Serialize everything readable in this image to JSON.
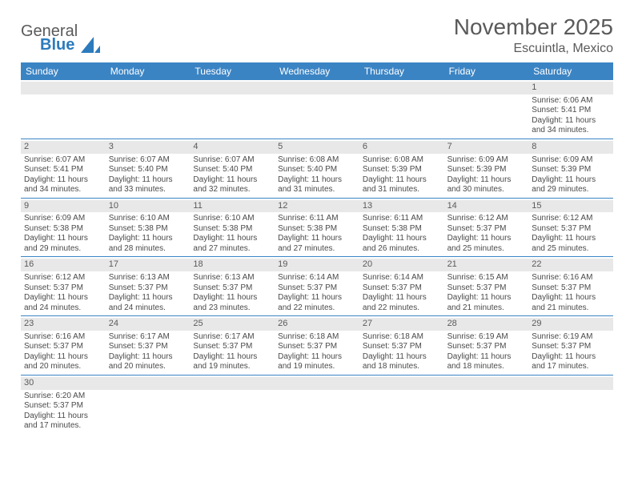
{
  "logo": {
    "text1": "General",
    "text2": "Blue",
    "shape_color": "#2b7bbd",
    "text1_color": "#5a5a5a"
  },
  "title": "November 2025",
  "location": "Escuintla, Mexico",
  "colors": {
    "header_bg": "#3b84c4",
    "header_text": "#ffffff",
    "daynum_bg": "#e8e8e8",
    "row_border": "#3b84c4",
    "text": "#4a4a4a"
  },
  "weekdays": [
    "Sunday",
    "Monday",
    "Tuesday",
    "Wednesday",
    "Thursday",
    "Friday",
    "Saturday"
  ],
  "weeks": [
    [
      {
        "n": "",
        "empty": true
      },
      {
        "n": "",
        "empty": true
      },
      {
        "n": "",
        "empty": true
      },
      {
        "n": "",
        "empty": true
      },
      {
        "n": "",
        "empty": true
      },
      {
        "n": "",
        "empty": true
      },
      {
        "n": "1",
        "sunrise": "Sunrise: 6:06 AM",
        "sunset": "Sunset: 5:41 PM",
        "d1": "Daylight: 11 hours",
        "d2": "and 34 minutes."
      }
    ],
    [
      {
        "n": "2",
        "sunrise": "Sunrise: 6:07 AM",
        "sunset": "Sunset: 5:41 PM",
        "d1": "Daylight: 11 hours",
        "d2": "and 34 minutes."
      },
      {
        "n": "3",
        "sunrise": "Sunrise: 6:07 AM",
        "sunset": "Sunset: 5:40 PM",
        "d1": "Daylight: 11 hours",
        "d2": "and 33 minutes."
      },
      {
        "n": "4",
        "sunrise": "Sunrise: 6:07 AM",
        "sunset": "Sunset: 5:40 PM",
        "d1": "Daylight: 11 hours",
        "d2": "and 32 minutes."
      },
      {
        "n": "5",
        "sunrise": "Sunrise: 6:08 AM",
        "sunset": "Sunset: 5:40 PM",
        "d1": "Daylight: 11 hours",
        "d2": "and 31 minutes."
      },
      {
        "n": "6",
        "sunrise": "Sunrise: 6:08 AM",
        "sunset": "Sunset: 5:39 PM",
        "d1": "Daylight: 11 hours",
        "d2": "and 31 minutes."
      },
      {
        "n": "7",
        "sunrise": "Sunrise: 6:09 AM",
        "sunset": "Sunset: 5:39 PM",
        "d1": "Daylight: 11 hours",
        "d2": "and 30 minutes."
      },
      {
        "n": "8",
        "sunrise": "Sunrise: 6:09 AM",
        "sunset": "Sunset: 5:39 PM",
        "d1": "Daylight: 11 hours",
        "d2": "and 29 minutes."
      }
    ],
    [
      {
        "n": "9",
        "sunrise": "Sunrise: 6:09 AM",
        "sunset": "Sunset: 5:38 PM",
        "d1": "Daylight: 11 hours",
        "d2": "and 29 minutes."
      },
      {
        "n": "10",
        "sunrise": "Sunrise: 6:10 AM",
        "sunset": "Sunset: 5:38 PM",
        "d1": "Daylight: 11 hours",
        "d2": "and 28 minutes."
      },
      {
        "n": "11",
        "sunrise": "Sunrise: 6:10 AM",
        "sunset": "Sunset: 5:38 PM",
        "d1": "Daylight: 11 hours",
        "d2": "and 27 minutes."
      },
      {
        "n": "12",
        "sunrise": "Sunrise: 6:11 AM",
        "sunset": "Sunset: 5:38 PM",
        "d1": "Daylight: 11 hours",
        "d2": "and 27 minutes."
      },
      {
        "n": "13",
        "sunrise": "Sunrise: 6:11 AM",
        "sunset": "Sunset: 5:38 PM",
        "d1": "Daylight: 11 hours",
        "d2": "and 26 minutes."
      },
      {
        "n": "14",
        "sunrise": "Sunrise: 6:12 AM",
        "sunset": "Sunset: 5:37 PM",
        "d1": "Daylight: 11 hours",
        "d2": "and 25 minutes."
      },
      {
        "n": "15",
        "sunrise": "Sunrise: 6:12 AM",
        "sunset": "Sunset: 5:37 PM",
        "d1": "Daylight: 11 hours",
        "d2": "and 25 minutes."
      }
    ],
    [
      {
        "n": "16",
        "sunrise": "Sunrise: 6:12 AM",
        "sunset": "Sunset: 5:37 PM",
        "d1": "Daylight: 11 hours",
        "d2": "and 24 minutes."
      },
      {
        "n": "17",
        "sunrise": "Sunrise: 6:13 AM",
        "sunset": "Sunset: 5:37 PM",
        "d1": "Daylight: 11 hours",
        "d2": "and 24 minutes."
      },
      {
        "n": "18",
        "sunrise": "Sunrise: 6:13 AM",
        "sunset": "Sunset: 5:37 PM",
        "d1": "Daylight: 11 hours",
        "d2": "and 23 minutes."
      },
      {
        "n": "19",
        "sunrise": "Sunrise: 6:14 AM",
        "sunset": "Sunset: 5:37 PM",
        "d1": "Daylight: 11 hours",
        "d2": "and 22 minutes."
      },
      {
        "n": "20",
        "sunrise": "Sunrise: 6:14 AM",
        "sunset": "Sunset: 5:37 PM",
        "d1": "Daylight: 11 hours",
        "d2": "and 22 minutes."
      },
      {
        "n": "21",
        "sunrise": "Sunrise: 6:15 AM",
        "sunset": "Sunset: 5:37 PM",
        "d1": "Daylight: 11 hours",
        "d2": "and 21 minutes."
      },
      {
        "n": "22",
        "sunrise": "Sunrise: 6:16 AM",
        "sunset": "Sunset: 5:37 PM",
        "d1": "Daylight: 11 hours",
        "d2": "and 21 minutes."
      }
    ],
    [
      {
        "n": "23",
        "sunrise": "Sunrise: 6:16 AM",
        "sunset": "Sunset: 5:37 PM",
        "d1": "Daylight: 11 hours",
        "d2": "and 20 minutes."
      },
      {
        "n": "24",
        "sunrise": "Sunrise: 6:17 AM",
        "sunset": "Sunset: 5:37 PM",
        "d1": "Daylight: 11 hours",
        "d2": "and 20 minutes."
      },
      {
        "n": "25",
        "sunrise": "Sunrise: 6:17 AM",
        "sunset": "Sunset: 5:37 PM",
        "d1": "Daylight: 11 hours",
        "d2": "and 19 minutes."
      },
      {
        "n": "26",
        "sunrise": "Sunrise: 6:18 AM",
        "sunset": "Sunset: 5:37 PM",
        "d1": "Daylight: 11 hours",
        "d2": "and 19 minutes."
      },
      {
        "n": "27",
        "sunrise": "Sunrise: 6:18 AM",
        "sunset": "Sunset: 5:37 PM",
        "d1": "Daylight: 11 hours",
        "d2": "and 18 minutes."
      },
      {
        "n": "28",
        "sunrise": "Sunrise: 6:19 AM",
        "sunset": "Sunset: 5:37 PM",
        "d1": "Daylight: 11 hours",
        "d2": "and 18 minutes."
      },
      {
        "n": "29",
        "sunrise": "Sunrise: 6:19 AM",
        "sunset": "Sunset: 5:37 PM",
        "d1": "Daylight: 11 hours",
        "d2": "and 17 minutes."
      }
    ],
    [
      {
        "n": "30",
        "sunrise": "Sunrise: 6:20 AM",
        "sunset": "Sunset: 5:37 PM",
        "d1": "Daylight: 11 hours",
        "d2": "and 17 minutes."
      },
      {
        "n": "",
        "empty": true
      },
      {
        "n": "",
        "empty": true
      },
      {
        "n": "",
        "empty": true
      },
      {
        "n": "",
        "empty": true
      },
      {
        "n": "",
        "empty": true
      },
      {
        "n": "",
        "empty": true
      }
    ]
  ]
}
